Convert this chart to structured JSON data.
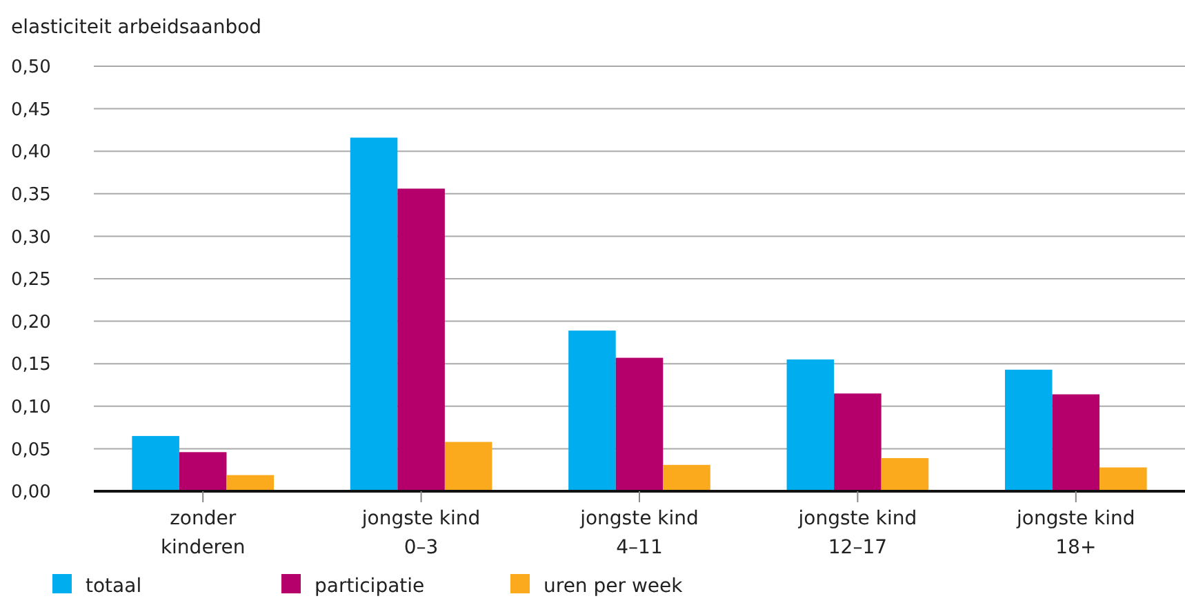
{
  "chart_data": {
    "type": "bar",
    "ylabel": "elasticiteit arbeidsaanbod",
    "categories": [
      "zonder\nkinderen",
      "jongste kind\n0–3",
      "jongste kind\n4–11",
      "jongste kind\n12–17",
      "jongste kind\n18+"
    ],
    "series": [
      {
        "name": "totaal",
        "color": "#00aeef",
        "values": [
          0.065,
          0.416,
          0.189,
          0.155,
          0.143
        ]
      },
      {
        "name": "participatie",
        "color": "#b5006b",
        "values": [
          0.046,
          0.356,
          0.157,
          0.115,
          0.114
        ]
      },
      {
        "name": "uren per week",
        "color": "#fbaa1e",
        "values": [
          0.019,
          0.058,
          0.031,
          0.039,
          0.028
        ]
      }
    ],
    "ylim": [
      0,
      0.5
    ],
    "yticks": [
      {
        "value": 0,
        "label": "0,00"
      },
      {
        "value": 0.05,
        "label": "0,05"
      },
      {
        "value": 0.1,
        "label": "0,10"
      },
      {
        "value": 0.15,
        "label": "0,15"
      },
      {
        "value": 0.2,
        "label": "0,20"
      },
      {
        "value": 0.25,
        "label": "0,25"
      },
      {
        "value": 0.3,
        "label": "0,30"
      },
      {
        "value": 0.35,
        "label": "0,35"
      },
      {
        "value": 0.4,
        "label": "0,40"
      },
      {
        "value": 0.45,
        "label": "0,45"
      },
      {
        "value": 0.5,
        "label": "0,50"
      }
    ],
    "grid": "y",
    "legend": "bottom"
  }
}
